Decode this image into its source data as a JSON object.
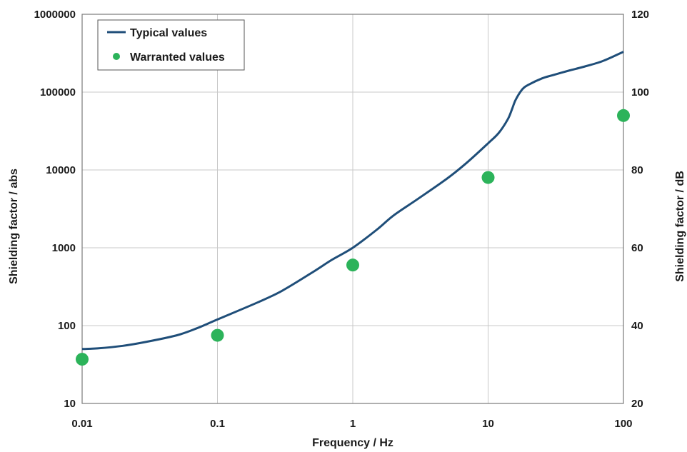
{
  "chart_data": {
    "type": "line",
    "x_scale": "log",
    "y_scale": "log",
    "xlim": [
      0.01,
      100
    ],
    "ylim": [
      10,
      1000000
    ],
    "y2lim": [
      20,
      120
    ],
    "x_ticks": [
      "0.01",
      "0.1",
      "1",
      "10",
      "100"
    ],
    "y_ticks": [
      "10",
      "100",
      "1000",
      "10000",
      "100000",
      "1000000"
    ],
    "y2_ticks": [
      "20",
      "40",
      "60",
      "80",
      "100",
      "120"
    ],
    "xlabel": "Frequency / Hz",
    "ylabel": "Shielding factor / abs",
    "y2label": "Shielding factor / dB",
    "grid": true,
    "legend_position": "top-left",
    "series": [
      {
        "name": "Typical values",
        "kind": "line",
        "color": "#1f4e79",
        "points": [
          [
            0.01,
            50
          ],
          [
            0.013,
            51
          ],
          [
            0.02,
            55
          ],
          [
            0.03,
            62
          ],
          [
            0.05,
            75
          ],
          [
            0.07,
            92
          ],
          [
            0.1,
            120
          ],
          [
            0.2,
            200
          ],
          [
            0.3,
            280
          ],
          [
            0.5,
            480
          ],
          [
            0.7,
            700
          ],
          [
            1,
            1000
          ],
          [
            1.5,
            1700
          ],
          [
            2,
            2600
          ],
          [
            3,
            4200
          ],
          [
            5,
            7800
          ],
          [
            7,
            12500
          ],
          [
            10,
            22000
          ],
          [
            12,
            30000
          ],
          [
            14,
            45000
          ],
          [
            15,
            60000
          ],
          [
            16,
            80000
          ],
          [
            18,
            110000
          ],
          [
            20,
            125000
          ],
          [
            25,
            150000
          ],
          [
            30,
            165000
          ],
          [
            40,
            190000
          ],
          [
            50,
            210000
          ],
          [
            70,
            250000
          ],
          [
            100,
            330000
          ]
        ]
      },
      {
        "name": "Warranted values",
        "kind": "scatter",
        "color": "#2cb35a",
        "points": [
          [
            0.01,
            37
          ],
          [
            0.1,
            75
          ],
          [
            1,
            600
          ],
          [
            10,
            8000
          ],
          [
            100,
            50000
          ]
        ]
      }
    ]
  }
}
